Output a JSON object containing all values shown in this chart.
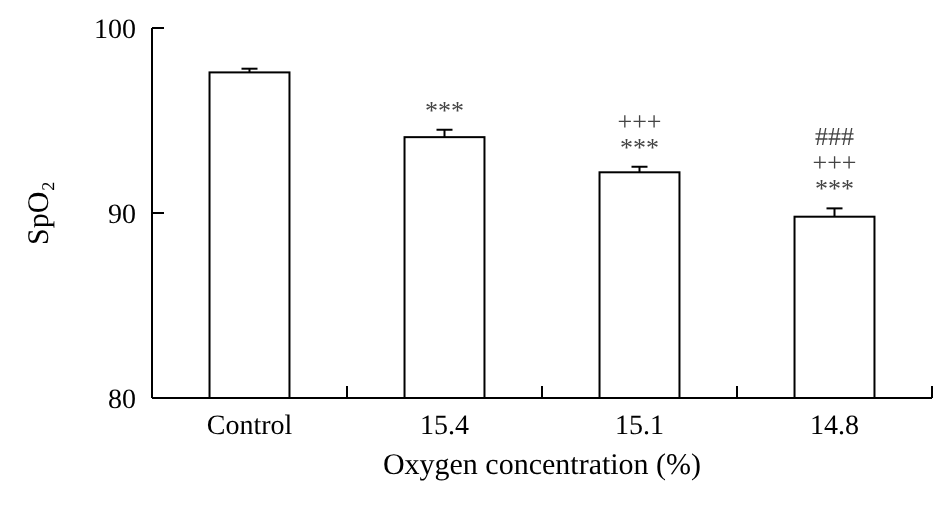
{
  "chart_data": {
    "type": "bar",
    "xlabel": "Oxygen concentration (%)",
    "ylabel": "SpO₂",
    "categories": [
      "Control",
      "15.4",
      "15.1",
      "14.8"
    ],
    "values": [
      97.6,
      94.1,
      92.2,
      89.8
    ],
    "errors": [
      0.2,
      0.4,
      0.3,
      0.45
    ],
    "color": "#ffffff",
    "ylim": [
      80,
      100
    ],
    "yticks": [
      80,
      90,
      100
    ],
    "grid": false,
    "annotations": [
      "***",
      "+++\n***",
      "###\n+++\n***"
    ]
  }
}
